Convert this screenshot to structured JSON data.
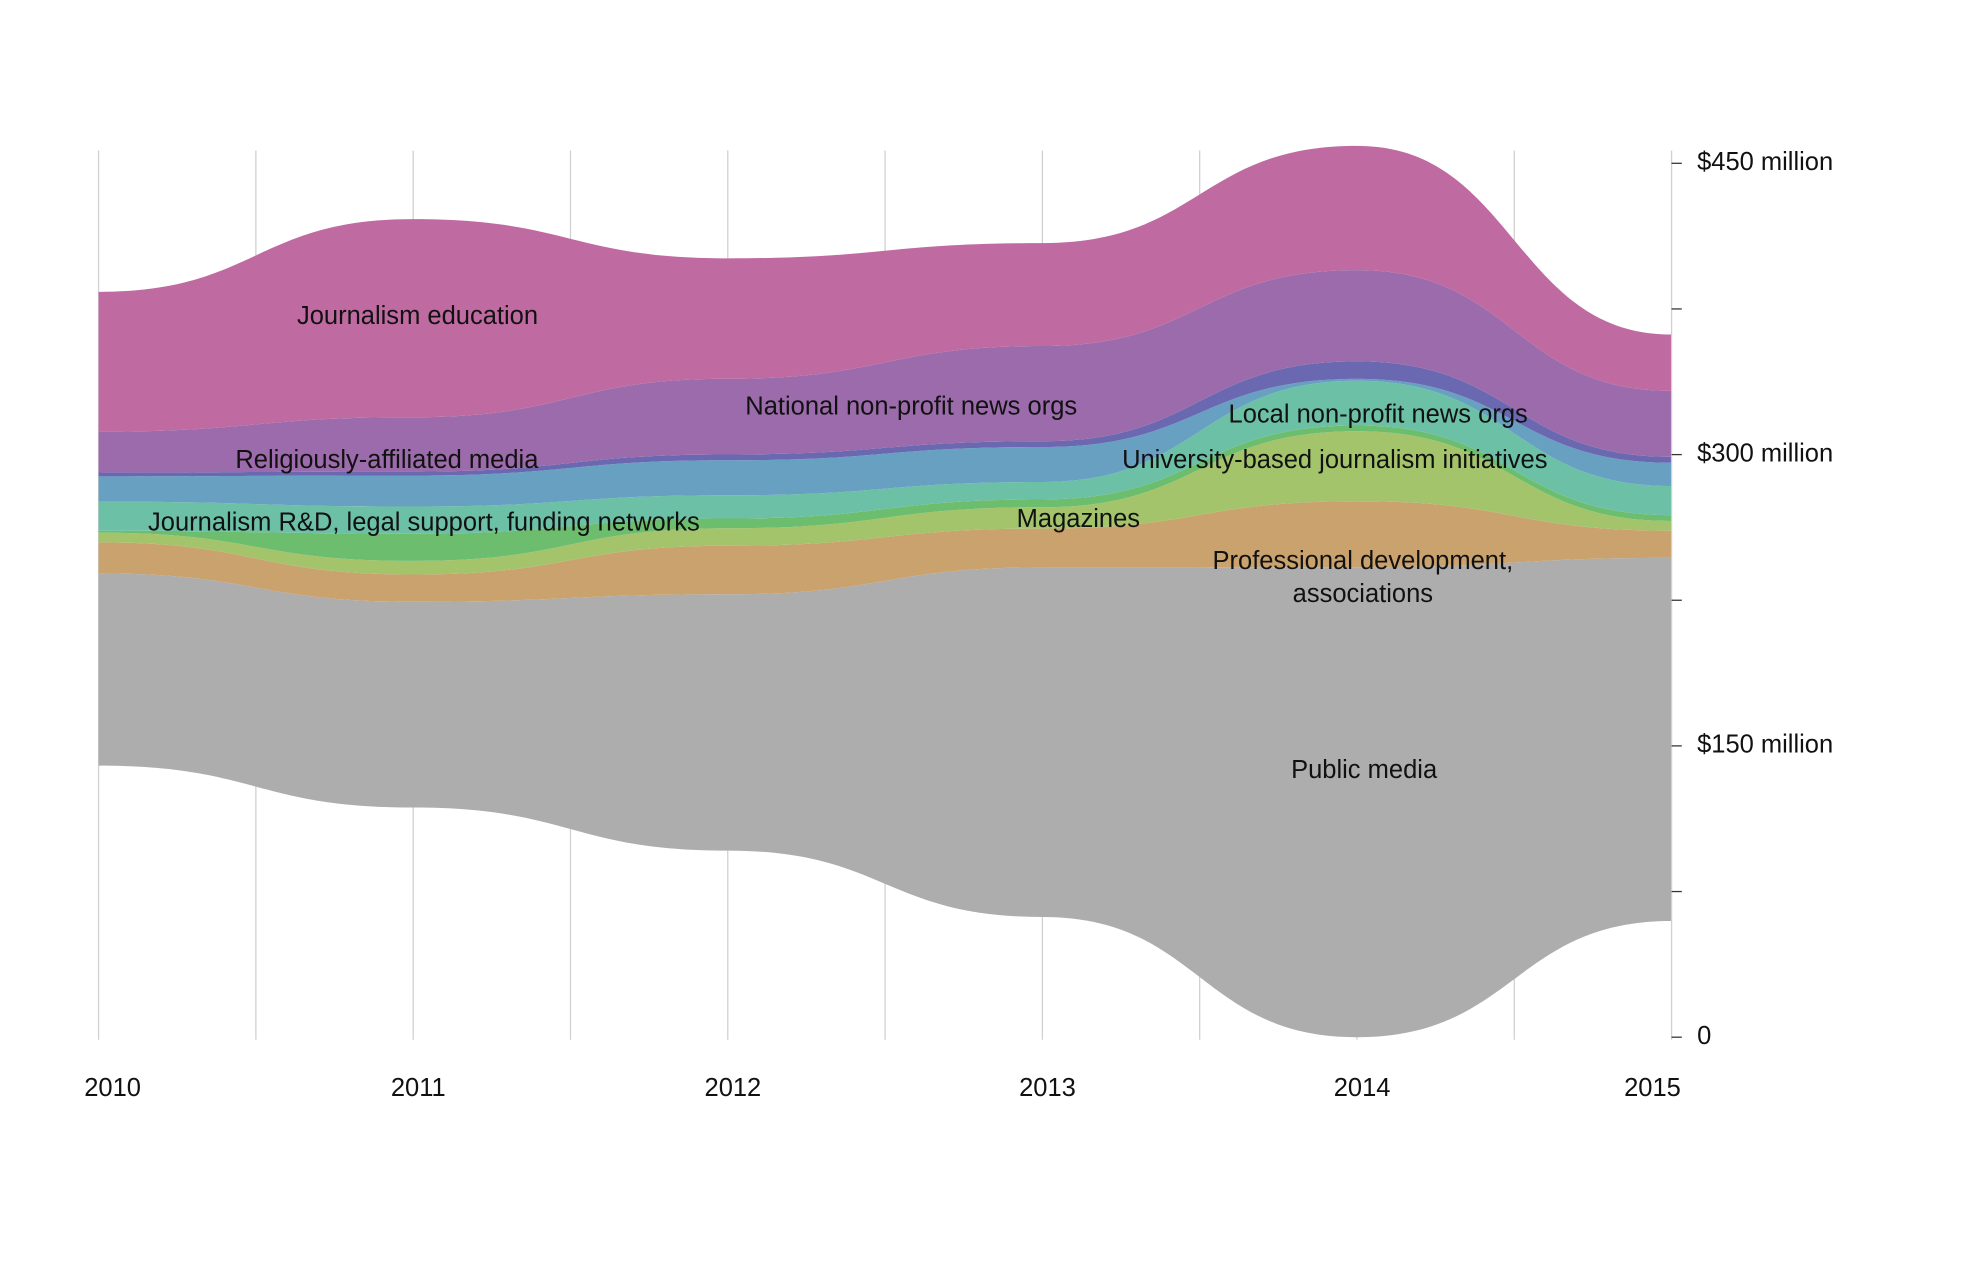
{
  "chart_data": {
    "type": "streamgraph",
    "x": [
      2010,
      2011,
      2012,
      2013,
      2014,
      2015
    ],
    "xlim": [
      2010,
      2015
    ],
    "xticks": [
      2010,
      2011,
      2012,
      2013,
      2014,
      2015
    ],
    "xgrid_minor": [
      2010.5,
      2011.5,
      2012.5,
      2013.5,
      2014.5
    ],
    "ylim": [
      0,
      450
    ],
    "yticks": [
      0,
      {
        "value": 150,
        "label": "$150 million"
      },
      {
        "value": 300,
        "label": "$300 million"
      },
      {
        "value": 450,
        "label": "$450 million"
      }
    ],
    "yticks_minor": [
      75,
      225,
      375
    ],
    "series": [
      {
        "name": "Public media",
        "color": "#adadad",
        "values": [
          99,
          106,
          132,
          180,
          242,
          187
        ]
      },
      {
        "name": "Professional development, associations",
        "color": "#c9a26d",
        "values": [
          16,
          14,
          25,
          20,
          34,
          14
        ]
      },
      {
        "name": "Magazines",
        "color": "#a4c46c",
        "values": [
          5,
          7,
          9,
          11,
          36,
          5
        ]
      },
      {
        "name": "Journalism R&D, legal support, funding networks",
        "color": "#6dbd6e",
        "values": [
          1,
          14,
          5,
          4,
          3,
          3
        ]
      },
      {
        "name": "University-based journalism initiatives",
        "color": "#6cc0a5",
        "values": [
          15,
          14,
          12,
          9,
          23,
          15
        ]
      },
      {
        "name": "Local non-profit news orgs",
        "color": "#68a0c2",
        "values": [
          13,
          16,
          18,
          18,
          1,
          12
        ]
      },
      {
        "name": "Religiously-affiliated media",
        "color": "#6a68b0",
        "values": [
          2,
          2,
          3,
          3,
          9,
          3
        ]
      },
      {
        "name": "National non-profit news orgs",
        "color": "#9b6bab",
        "values": [
          21,
          28,
          39,
          49,
          47,
          34
        ]
      },
      {
        "name": "Journalism education",
        "color": "#c06aa2",
        "values": [
          72,
          102,
          62,
          53,
          64,
          29
        ]
      }
    ]
  }
}
